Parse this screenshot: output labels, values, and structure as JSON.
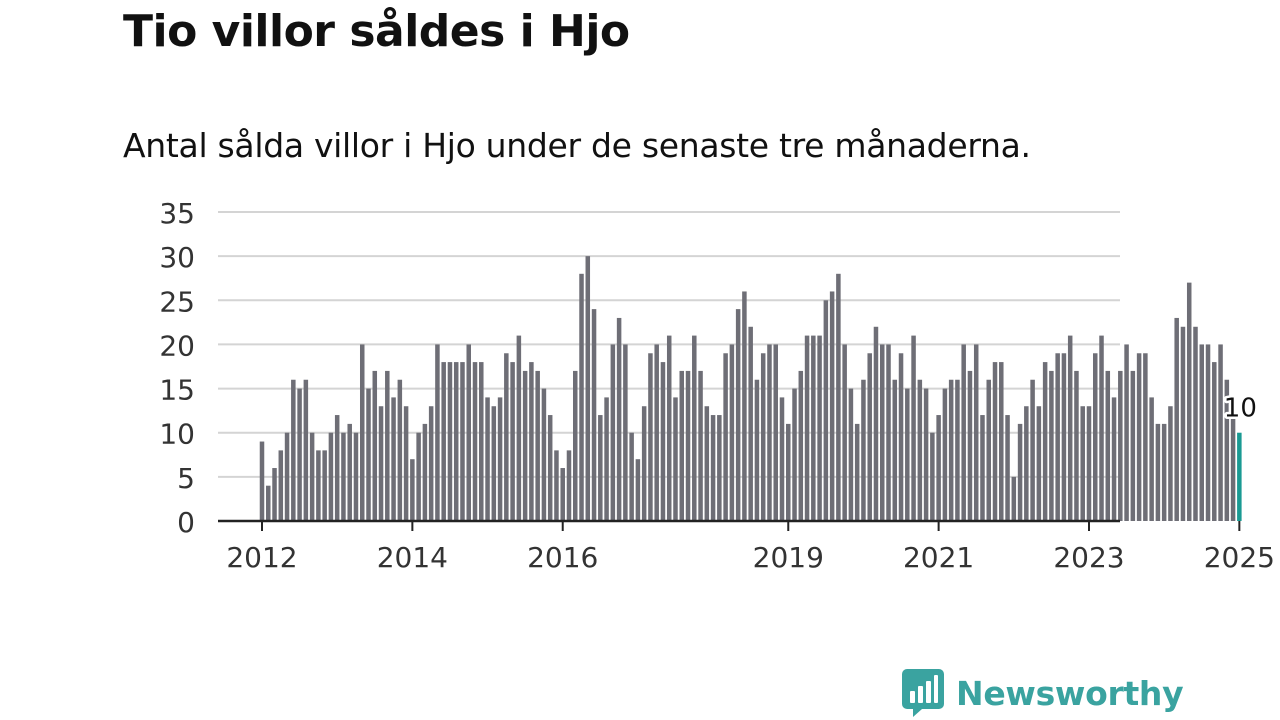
{
  "title": "Tio villor såldes i Hjo",
  "subtitle": "Antal sålda villor i Hjo under de senaste tre månaderna.",
  "logo_text": "Newsworthy",
  "colors": {
    "bar": "#6e6e76",
    "highlight": "#1a9a93",
    "grid": "#d4d4d4",
    "axis": "#222222",
    "brand": "#3aa3a0"
  },
  "chart_data": {
    "type": "bar",
    "start": "2012-01",
    "frequency": "monthly",
    "ylim": [
      0,
      35
    ],
    "yticks": [
      0,
      5,
      10,
      15,
      20,
      25,
      30,
      35
    ],
    "xticks": [
      "2012",
      "2014",
      "2016",
      "2019",
      "2021",
      "2023",
      "2025"
    ],
    "grid": true,
    "values": [
      9,
      4,
      6,
      8,
      10,
      16,
      15,
      16,
      10,
      8,
      8,
      10,
      12,
      10,
      11,
      10,
      20,
      15,
      17,
      13,
      17,
      14,
      16,
      13,
      7,
      10,
      11,
      13,
      20,
      18,
      18,
      18,
      18,
      20,
      18,
      18,
      14,
      13,
      14,
      19,
      18,
      21,
      17,
      18,
      17,
      15,
      12,
      8,
      6,
      8,
      17,
      28,
      30,
      24,
      12,
      14,
      20,
      23,
      20,
      10,
      7,
      13,
      19,
      20,
      18,
      21,
      14,
      17,
      17,
      21,
      17,
      13,
      12,
      12,
      19,
      20,
      24,
      26,
      22,
      16,
      19,
      20,
      20,
      14,
      11,
      15,
      17,
      21,
      21,
      21,
      25,
      26,
      28,
      20,
      15,
      11,
      16,
      19,
      22,
      20,
      20,
      16,
      19,
      15,
      21,
      16,
      15,
      10,
      12,
      15,
      16,
      16,
      20,
      17,
      20,
      12,
      16,
      18,
      18,
      12,
      5,
      11,
      13,
      16,
      13,
      18,
      17,
      19,
      19,
      21,
      17,
      13,
      13,
      19,
      21,
      17,
      14,
      17,
      20,
      17,
      19,
      19,
      14,
      11,
      11,
      13,
      23,
      22,
      27,
      22,
      20,
      20,
      18,
      20,
      16,
      12,
      10
    ],
    "highlight_label": "10"
  }
}
